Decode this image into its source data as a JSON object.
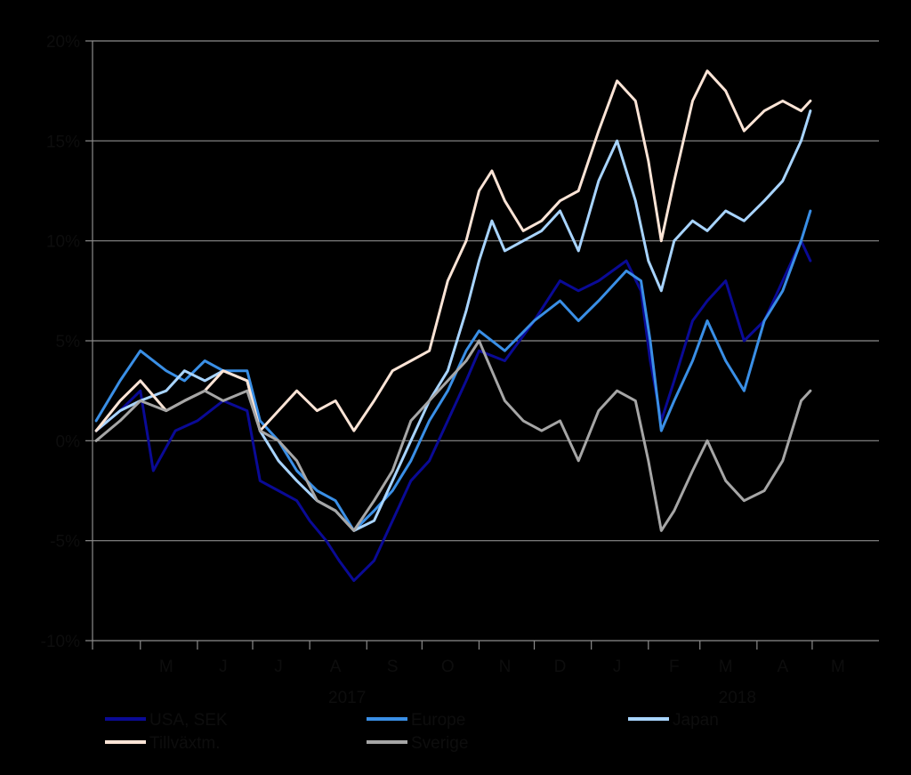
{
  "chart_data": {
    "type": "line",
    "title": "",
    "xlabel": "",
    "ylabel": "",
    "ylim": [
      -10,
      20
    ],
    "y_ticks": [
      20,
      15,
      10,
      5,
      0,
      -5,
      -10
    ],
    "y_tick_labels": [
      "20%",
      "15%",
      "10%",
      "5%",
      "0%",
      "-5%",
      "-10%"
    ],
    "x_domain": [
      "2017-04-05",
      "2018-05-31"
    ],
    "x_month_labels": [
      {
        "label": "M",
        "date": "2017-05-15"
      },
      {
        "label": "J",
        "date": "2017-06-15"
      },
      {
        "label": "J",
        "date": "2017-07-15"
      },
      {
        "label": "A",
        "date": "2017-08-15"
      },
      {
        "label": "S",
        "date": "2017-09-15"
      },
      {
        "label": "O",
        "date": "2017-10-15"
      },
      {
        "label": "N",
        "date": "2017-11-15"
      },
      {
        "label": "D",
        "date": "2017-12-15"
      },
      {
        "label": "J",
        "date": "2018-01-15"
      },
      {
        "label": "F",
        "date": "2018-02-15"
      },
      {
        "label": "M",
        "date": "2018-03-15"
      },
      {
        "label": "A",
        "date": "2018-04-15"
      },
      {
        "label": "M",
        "date": "2018-05-15"
      }
    ],
    "x_year_labels": [
      {
        "label": "2017",
        "date": "2017-08-31"
      },
      {
        "label": "2018",
        "date": "2018-03-31"
      }
    ],
    "grid": "horizontal",
    "legend_position": "bottom",
    "series": [
      {
        "name": "USA, SEK",
        "color": "#0a0a96",
        "points": [
          [
            "2017-04-07",
            0.5
          ],
          [
            "2017-04-20",
            1.5
          ],
          [
            "2017-05-01",
            2.5
          ],
          [
            "2017-05-08",
            -1.5
          ],
          [
            "2017-05-20",
            0.5
          ],
          [
            "2017-06-01",
            1.0
          ],
          [
            "2017-06-15",
            2.0
          ],
          [
            "2017-06-28",
            1.5
          ],
          [
            "2017-07-05",
            -2.0
          ],
          [
            "2017-07-15",
            -2.5
          ],
          [
            "2017-07-25",
            -3.0
          ],
          [
            "2017-08-01",
            -4.0
          ],
          [
            "2017-08-10",
            -5.0
          ],
          [
            "2017-08-17",
            -6.0
          ],
          [
            "2017-08-25",
            -7.0
          ],
          [
            "2017-09-05",
            -6.0
          ],
          [
            "2017-09-15",
            -4.0
          ],
          [
            "2017-09-25",
            -2.0
          ],
          [
            "2017-10-05",
            -1.0
          ],
          [
            "2017-10-15",
            1.0
          ],
          [
            "2017-10-25",
            3.0
          ],
          [
            "2017-11-01",
            4.5
          ],
          [
            "2017-11-15",
            4.0
          ],
          [
            "2017-12-01",
            6.0
          ],
          [
            "2017-12-15",
            8.0
          ],
          [
            "2017-12-25",
            7.5
          ],
          [
            "2018-01-05",
            8.0
          ],
          [
            "2018-01-20",
            9.0
          ],
          [
            "2018-01-28",
            7.5
          ],
          [
            "2018-02-02",
            4.0
          ],
          [
            "2018-02-08",
            1.0
          ],
          [
            "2018-02-15",
            3.0
          ],
          [
            "2018-02-25",
            6.0
          ],
          [
            "2018-03-05",
            7.0
          ],
          [
            "2018-03-15",
            8.0
          ],
          [
            "2018-03-25",
            5.0
          ],
          [
            "2018-04-05",
            6.0
          ],
          [
            "2018-04-15",
            8.0
          ],
          [
            "2018-04-25",
            10.0
          ],
          [
            "2018-04-30",
            9.0
          ]
        ]
      },
      {
        "name": "Europe",
        "color": "#3a8fe6",
        "points": [
          [
            "2017-04-07",
            1.0
          ],
          [
            "2017-04-20",
            3.0
          ],
          [
            "2017-05-01",
            4.5
          ],
          [
            "2017-05-15",
            3.5
          ],
          [
            "2017-05-25",
            3.0
          ],
          [
            "2017-06-05",
            4.0
          ],
          [
            "2017-06-15",
            3.5
          ],
          [
            "2017-06-28",
            3.5
          ],
          [
            "2017-07-05",
            1.0
          ],
          [
            "2017-07-15",
            0.0
          ],
          [
            "2017-07-25",
            -1.5
          ],
          [
            "2017-08-05",
            -2.5
          ],
          [
            "2017-08-15",
            -3.0
          ],
          [
            "2017-08-25",
            -4.5
          ],
          [
            "2017-09-05",
            -3.5
          ],
          [
            "2017-09-15",
            -2.5
          ],
          [
            "2017-09-25",
            -1.0
          ],
          [
            "2017-10-05",
            1.0
          ],
          [
            "2017-10-15",
            2.5
          ],
          [
            "2017-10-25",
            4.5
          ],
          [
            "2017-11-01",
            5.5
          ],
          [
            "2017-11-15",
            4.5
          ],
          [
            "2017-12-01",
            6.0
          ],
          [
            "2017-12-15",
            7.0
          ],
          [
            "2017-12-25",
            6.0
          ],
          [
            "2018-01-05",
            7.0
          ],
          [
            "2018-01-20",
            8.5
          ],
          [
            "2018-01-28",
            8.0
          ],
          [
            "2018-02-02",
            5.0
          ],
          [
            "2018-02-08",
            0.5
          ],
          [
            "2018-02-15",
            2.0
          ],
          [
            "2018-02-25",
            4.0
          ],
          [
            "2018-03-05",
            6.0
          ],
          [
            "2018-03-15",
            4.0
          ],
          [
            "2018-03-25",
            2.5
          ],
          [
            "2018-04-05",
            6.0
          ],
          [
            "2018-04-15",
            7.5
          ],
          [
            "2018-04-25",
            10.0
          ],
          [
            "2018-04-30",
            11.5
          ]
        ]
      },
      {
        "name": "Japan",
        "color": "#a8d4ff",
        "points": [
          [
            "2017-04-07",
            0.5
          ],
          [
            "2017-04-20",
            1.5
          ],
          [
            "2017-05-01",
            2.0
          ],
          [
            "2017-05-15",
            2.5
          ],
          [
            "2017-05-25",
            3.5
          ],
          [
            "2017-06-05",
            3.0
          ],
          [
            "2017-06-15",
            3.5
          ],
          [
            "2017-06-28",
            3.0
          ],
          [
            "2017-07-05",
            0.5
          ],
          [
            "2017-07-15",
            -1.0
          ],
          [
            "2017-07-25",
            -2.0
          ],
          [
            "2017-08-05",
            -3.0
          ],
          [
            "2017-08-15",
            -3.5
          ],
          [
            "2017-08-25",
            -4.5
          ],
          [
            "2017-09-05",
            -4.0
          ],
          [
            "2017-09-15",
            -2.0
          ],
          [
            "2017-09-25",
            0.0
          ],
          [
            "2017-10-05",
            2.0
          ],
          [
            "2017-10-15",
            3.5
          ],
          [
            "2017-10-25",
            6.5
          ],
          [
            "2017-11-01",
            9.0
          ],
          [
            "2017-11-08",
            11.0
          ],
          [
            "2017-11-15",
            9.5
          ],
          [
            "2017-11-25",
            10.0
          ],
          [
            "2017-12-05",
            10.5
          ],
          [
            "2017-12-15",
            11.5
          ],
          [
            "2017-12-25",
            9.5
          ],
          [
            "2018-01-05",
            13.0
          ],
          [
            "2018-01-15",
            15.0
          ],
          [
            "2018-01-25",
            12.0
          ],
          [
            "2018-02-01",
            9.0
          ],
          [
            "2018-02-08",
            7.5
          ],
          [
            "2018-02-15",
            10.0
          ],
          [
            "2018-02-25",
            11.0
          ],
          [
            "2018-03-05",
            10.5
          ],
          [
            "2018-03-15",
            11.5
          ],
          [
            "2018-03-25",
            11.0
          ],
          [
            "2018-04-05",
            12.0
          ],
          [
            "2018-04-15",
            13.0
          ],
          [
            "2018-04-25",
            15.0
          ],
          [
            "2018-04-30",
            16.5
          ]
        ]
      },
      {
        "name": "Tillväxtm.",
        "color": "#fce4d6",
        "points": [
          [
            "2017-04-07",
            0.5
          ],
          [
            "2017-04-20",
            2.0
          ],
          [
            "2017-05-01",
            3.0
          ],
          [
            "2017-05-15",
            1.5
          ],
          [
            "2017-05-25",
            2.0
          ],
          [
            "2017-06-05",
            2.5
          ],
          [
            "2017-06-15",
            3.5
          ],
          [
            "2017-06-28",
            3.0
          ],
          [
            "2017-07-05",
            0.5
          ],
          [
            "2017-07-15",
            1.5
          ],
          [
            "2017-07-25",
            2.5
          ],
          [
            "2017-08-05",
            1.5
          ],
          [
            "2017-08-15",
            2.0
          ],
          [
            "2017-08-25",
            0.5
          ],
          [
            "2017-09-05",
            2.0
          ],
          [
            "2017-09-15",
            3.5
          ],
          [
            "2017-09-25",
            4.0
          ],
          [
            "2017-10-05",
            4.5
          ],
          [
            "2017-10-15",
            8.0
          ],
          [
            "2017-10-25",
            10.0
          ],
          [
            "2017-11-01",
            12.5
          ],
          [
            "2017-11-08",
            13.5
          ],
          [
            "2017-11-15",
            12.0
          ],
          [
            "2017-11-25",
            10.5
          ],
          [
            "2017-12-05",
            11.0
          ],
          [
            "2017-12-15",
            12.0
          ],
          [
            "2017-12-25",
            12.5
          ],
          [
            "2018-01-05",
            15.5
          ],
          [
            "2018-01-15",
            18.0
          ],
          [
            "2018-01-25",
            17.0
          ],
          [
            "2018-02-01",
            14.0
          ],
          [
            "2018-02-08",
            10.0
          ],
          [
            "2018-02-15",
            13.0
          ],
          [
            "2018-02-25",
            17.0
          ],
          [
            "2018-03-05",
            18.5
          ],
          [
            "2018-03-15",
            17.5
          ],
          [
            "2018-03-25",
            15.5
          ],
          [
            "2018-04-05",
            16.5
          ],
          [
            "2018-04-15",
            17.0
          ],
          [
            "2018-04-25",
            16.5
          ],
          [
            "2018-04-30",
            17.0
          ]
        ]
      },
      {
        "name": "Sverige",
        "color": "#a6a6a6",
        "points": [
          [
            "2017-04-07",
            0.0
          ],
          [
            "2017-04-20",
            1.0
          ],
          [
            "2017-05-01",
            2.0
          ],
          [
            "2017-05-15",
            1.5
          ],
          [
            "2017-05-25",
            2.0
          ],
          [
            "2017-06-05",
            2.5
          ],
          [
            "2017-06-15",
            2.0
          ],
          [
            "2017-06-28",
            2.5
          ],
          [
            "2017-07-05",
            0.5
          ],
          [
            "2017-07-15",
            0.0
          ],
          [
            "2017-07-25",
            -1.0
          ],
          [
            "2017-08-05",
            -3.0
          ],
          [
            "2017-08-15",
            -3.5
          ],
          [
            "2017-08-25",
            -4.5
          ],
          [
            "2017-09-05",
            -3.0
          ],
          [
            "2017-09-15",
            -1.5
          ],
          [
            "2017-09-25",
            1.0
          ],
          [
            "2017-10-05",
            2.0
          ],
          [
            "2017-10-15",
            3.0
          ],
          [
            "2017-10-25",
            4.0
          ],
          [
            "2017-11-01",
            5.0
          ],
          [
            "2017-11-08",
            3.5
          ],
          [
            "2017-11-15",
            2.0
          ],
          [
            "2017-11-25",
            1.0
          ],
          [
            "2017-12-05",
            0.5
          ],
          [
            "2017-12-15",
            1.0
          ],
          [
            "2017-12-25",
            -1.0
          ],
          [
            "2018-01-05",
            1.5
          ],
          [
            "2018-01-15",
            2.5
          ],
          [
            "2018-01-25",
            2.0
          ],
          [
            "2018-02-01",
            -1.0
          ],
          [
            "2018-02-08",
            -4.5
          ],
          [
            "2018-02-15",
            -3.5
          ],
          [
            "2018-02-25",
            -1.5
          ],
          [
            "2018-03-05",
            0.0
          ],
          [
            "2018-03-15",
            -2.0
          ],
          [
            "2018-03-25",
            -3.0
          ],
          [
            "2018-04-05",
            -2.5
          ],
          [
            "2018-04-15",
            -1.0
          ],
          [
            "2018-04-25",
            2.0
          ],
          [
            "2018-04-30",
            2.5
          ]
        ]
      }
    ]
  }
}
